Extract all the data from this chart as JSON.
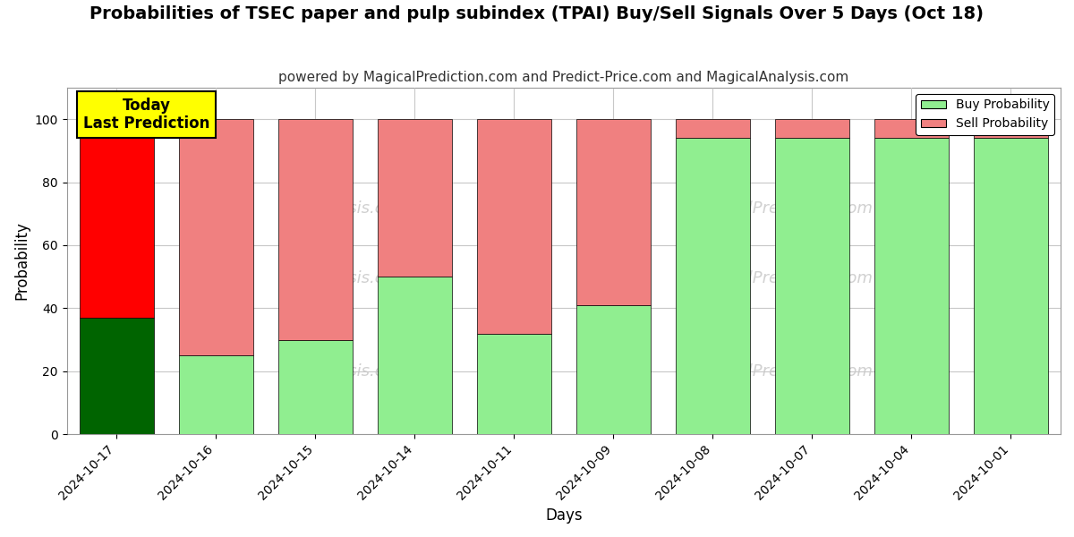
{
  "title": "Probabilities of TSEC paper and pulp subindex (TPAI) Buy/Sell Signals Over 5 Days (Oct 18)",
  "subtitle": "powered by MagicalPrediction.com and Predict-Price.com and MagicalAnalysis.com",
  "xlabel": "Days",
  "ylabel": "Probability",
  "dates": [
    "2024-10-17",
    "2024-10-16",
    "2024-10-15",
    "2024-10-14",
    "2024-10-11",
    "2024-10-09",
    "2024-10-08",
    "2024-10-07",
    "2024-10-04",
    "2024-10-01"
  ],
  "buy_values": [
    37,
    25,
    30,
    50,
    32,
    41,
    94,
    94,
    94,
    94
  ],
  "sell_values": [
    63,
    75,
    70,
    50,
    68,
    59,
    6,
    6,
    6,
    6
  ],
  "buy_colors": [
    "#006400",
    "#90EE90",
    "#90EE90",
    "#90EE90",
    "#90EE90",
    "#90EE90",
    "#90EE90",
    "#90EE90",
    "#90EE90",
    "#90EE90"
  ],
  "sell_colors": [
    "#FF0000",
    "#F08080",
    "#F08080",
    "#F08080",
    "#F08080",
    "#F08080",
    "#F08080",
    "#F08080",
    "#F08080",
    "#F08080"
  ],
  "today_label_line1": "Today",
  "today_label_line2": "Last Prediction",
  "today_box_color": "#FFFF00",
  "today_box_edgecolor": "#000000",
  "legend_buy_label": "Buy Probability",
  "legend_sell_label": "Sell Probability",
  "ylim": [
    0,
    110
  ],
  "yticks": [
    0,
    20,
    40,
    60,
    80,
    100
  ],
  "dashed_line_y": 110,
  "bar_edge_color": "#000000",
  "bar_linewidth": 0.5,
  "background_color": "#ffffff",
  "grid_color": "#c8c8c8",
  "plot_bg_color": "#ffffff",
  "title_fontsize": 14,
  "subtitle_fontsize": 11,
  "bar_width": 0.75
}
